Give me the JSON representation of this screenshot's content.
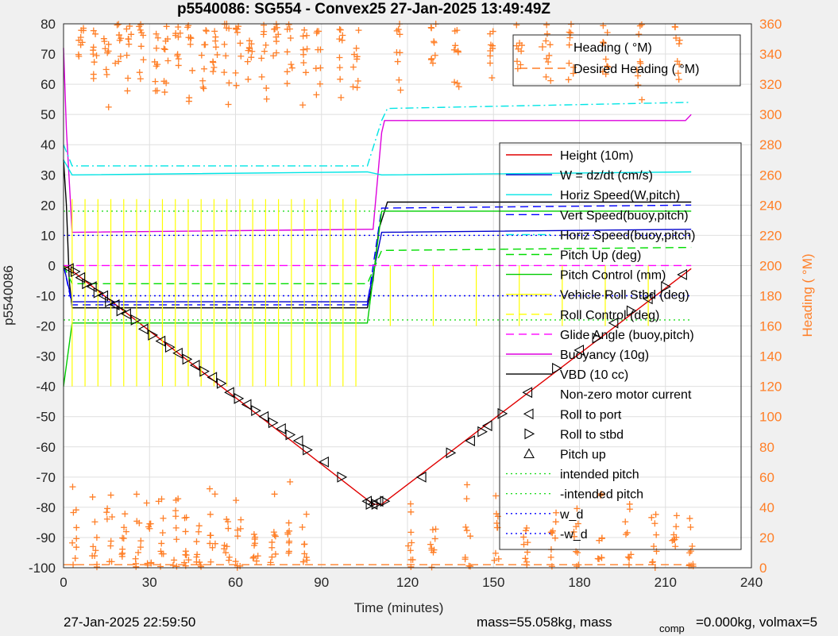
{
  "chart_data": {
    "type": "line",
    "title": "p5540086: SG554 - Convex25 27-Jan-2025 13:49:49Z",
    "xlabel": "Time (minutes)",
    "ylabel_left": "p5540086",
    "ylabel_right": "Heading ( °M)",
    "xlim": [
      0,
      240
    ],
    "ylim_left": [
      -100,
      80
    ],
    "ylim_right": [
      0,
      360
    ],
    "xticks": [
      0,
      30,
      60,
      90,
      120,
      150,
      180,
      210,
      240
    ],
    "yticks_left": [
      80,
      70,
      60,
      50,
      40,
      30,
      20,
      10,
      0,
      -10,
      -20,
      -30,
      -40,
      -50,
      -60,
      -70,
      -80,
      -90,
      -100
    ],
    "yticks_right": [
      360,
      340,
      320,
      300,
      280,
      260,
      240,
      220,
      200,
      180,
      160,
      140,
      120,
      100,
      80,
      60,
      40,
      20,
      0
    ],
    "grid": true,
    "legend_top": {
      "placement": "top-right",
      "entries": [
        {
          "label": "Heading ( °M)",
          "color": "#ff7f27",
          "style": "plus"
        },
        {
          "label": "Desired Heading ( °M)",
          "color": "#ff7f27",
          "style": "dash"
        }
      ]
    },
    "legend_main": {
      "placement": "right",
      "entries": [
        {
          "label": "Height (10m)",
          "color": "#e00000",
          "style": "solid"
        },
        {
          "label": "W = dz/dt (cm/s)",
          "color": "#0000cc",
          "style": "solid"
        },
        {
          "label": "Horiz Speed(W,pitch)",
          "color": "#00e5e5",
          "style": "solid"
        },
        {
          "label": "Vert Speed(buoy,pitch)",
          "color": "#0000ff",
          "style": "dash"
        },
        {
          "label": "Horiz Speed(buoy,pitch)",
          "color": "#00e5e5",
          "style": "dashdot"
        },
        {
          "label": "Pitch Up (deg)",
          "color": "#00dd00",
          "style": "dash"
        },
        {
          "label": "Pitch Control (mm)",
          "color": "#00cc00",
          "style": "solid"
        },
        {
          "label": "Vehicle Roll Stbd (deg)",
          "color": "#ffff00",
          "style": "solid"
        },
        {
          "label": "Roll Control (deg)",
          "color": "#ffff00",
          "style": "dash"
        },
        {
          "label": "Glide Angle (buoy,pitch)",
          "color": "#ff00ff",
          "style": "dash"
        },
        {
          "label": "Buoyancy (10g)",
          "color": "#dd00dd",
          "style": "solid"
        },
        {
          "label": "VBD (10 cc)",
          "color": "#000000",
          "style": "solid"
        },
        {
          "label": "Non-zero motor current",
          "color": "#000000",
          "style": "none"
        },
        {
          "label": "Roll to port",
          "color": "#000000",
          "style": "tri-left"
        },
        {
          "label": "Roll to stbd",
          "color": "#000000",
          "style": "tri-right"
        },
        {
          "label": "Pitch up",
          "color": "#000000",
          "style": "tri-up"
        },
        {
          "label": "intended pitch",
          "color": "#22dd22",
          "style": "dot"
        },
        {
          "label": "-intended pitch",
          "color": "#22dd22",
          "style": "dot"
        },
        {
          "label": "w_d",
          "color": "#0000ff",
          "style": "dot"
        },
        {
          "label": "-w_d",
          "color": "#0000ff",
          "style": "dot"
        }
      ]
    },
    "series": [
      {
        "name": "Height (10m)",
        "color": "#e00000",
        "x": [
          0,
          2,
          108,
          111,
          219
        ],
        "y": [
          0,
          -1,
          -79,
          -79,
          -1
        ]
      },
      {
        "name": "VBD (10 cc)",
        "color": "#000000",
        "x": [
          0,
          1,
          2,
          3,
          106,
          108,
          110,
          112,
          113,
          219
        ],
        "y": [
          35,
          20,
          -5,
          -14,
          -14,
          -5,
          12,
          18,
          21,
          21
        ]
      },
      {
        "name": "Buoyancy (10g)",
        "color": "#dd00dd",
        "x": [
          0,
          1,
          3,
          106,
          108,
          111,
          112,
          217,
          219
        ],
        "y": [
          72,
          45,
          11,
          12,
          12,
          44,
          48,
          48,
          50
        ]
      },
      {
        "name": "Horiz Speed(W,pitch)",
        "color": "#00e5e5",
        "x": [
          0,
          3,
          106,
          111,
          219
        ],
        "y": [
          35,
          30,
          31,
          30,
          31
        ]
      },
      {
        "name": "Horiz Speed(buoy,pitch)",
        "color": "#00e5e5",
        "x": [
          0,
          3,
          106,
          111,
          113,
          219
        ],
        "y": [
          40,
          33,
          33,
          48,
          52,
          54
        ]
      },
      {
        "name": "W = dz/dt (cm/s)",
        "color": "#0000cc",
        "x": [
          0,
          3,
          106,
          111,
          219
        ],
        "y": [
          0,
          -12,
          -12,
          11,
          12
        ]
      },
      {
        "name": "Vert Speed(buoy,pitch)",
        "color": "#0000ff",
        "x": [
          0,
          3,
          106,
          111,
          219
        ],
        "y": [
          0,
          -13,
          -13,
          19,
          20
        ]
      },
      {
        "name": "Pitch Up (deg)",
        "color": "#00dd00",
        "x": [
          0,
          3,
          106,
          111,
          219
        ],
        "y": [
          0,
          -6,
          -6,
          5,
          6
        ]
      },
      {
        "name": "Pitch Control (mm)",
        "color": "#00cc00",
        "x": [
          0,
          3,
          106,
          111,
          219
        ],
        "y": [
          -40,
          -19,
          -19,
          18,
          18
        ]
      },
      {
        "name": "Glide Angle (buoy,pitch)",
        "color": "#ff00ff",
        "x": [
          0,
          219
        ],
        "y": [
          0,
          0
        ]
      },
      {
        "name": "intended pitch",
        "color": "#22dd22",
        "x": [
          0,
          219
        ],
        "y": [
          18,
          18
        ]
      },
      {
        "name": "-intended pitch",
        "color": "#22dd22",
        "x": [
          0,
          219
        ],
        "y": [
          -18,
          -18
        ]
      },
      {
        "name": "w_d",
        "color": "#0000ff",
        "x": [
          0,
          219
        ],
        "y": [
          10,
          10
        ]
      },
      {
        "name": "-w_d",
        "color": "#0000ff",
        "x": [
          0,
          219
        ],
        "y": [
          -10,
          -10
        ]
      }
    ],
    "roll_markers": {
      "x": [
        2,
        4,
        6,
        8,
        10,
        12,
        14,
        16,
        18,
        20,
        22,
        25,
        28,
        31,
        34,
        37,
        40,
        43,
        46,
        49,
        52,
        55,
        58,
        61,
        64,
        67,
        70,
        73,
        76,
        79,
        82,
        85,
        91,
        97,
        106,
        107,
        108,
        109,
        110,
        112,
        125,
        135,
        142,
        146,
        148,
        153,
        162,
        172,
        180,
        186,
        192,
        198,
        204,
        210,
        216
      ],
      "y": [
        -1,
        -2,
        -4,
        -6,
        -7,
        -9,
        -10,
        -12,
        -13,
        -15,
        -16,
        -18,
        -21,
        -23,
        -25,
        -27,
        -29,
        -31,
        -33,
        -35,
        -37,
        -39,
        -42,
        -44,
        -46,
        -48,
        -50,
        -52,
        -54,
        -56,
        -58,
        -61,
        -65,
        -70,
        -78,
        -79,
        -79,
        -79,
        -78,
        -78,
        -70,
        -62,
        -58,
        -55,
        -53,
        -49,
        -42,
        -34,
        -28,
        -24,
        -19,
        -15,
        -11,
        -7,
        -3
      ]
    },
    "heading_clusters_high": {
      "x": [
        5,
        10,
        14,
        18,
        22,
        26,
        31,
        35,
        39,
        43,
        48,
        52,
        56,
        60,
        64,
        69,
        73,
        78,
        83,
        88,
        96,
        101,
        116,
        128,
        136,
        148,
        158,
        168,
        176,
        188,
        200,
        213
      ],
      "y_range": [
        300,
        360
      ]
    },
    "heading_clusters_low": {
      "x": [
        3,
        10,
        15,
        20,
        25,
        29,
        33,
        38,
        42,
        46,
        51,
        56,
        60,
        66,
        72,
        78,
        83,
        120,
        128,
        140,
        150,
        160,
        170,
        178,
        186,
        196,
        205,
        212,
        218
      ],
      "y_range": [
        0,
        60
      ]
    }
  },
  "footer": {
    "timestamp": "27-Jan-2025 22:59:50",
    "mass_text": "mass=55.058kg, mass",
    "comp_sub": "comp",
    "comp_text": "=0.000kg, volmax=5"
  }
}
